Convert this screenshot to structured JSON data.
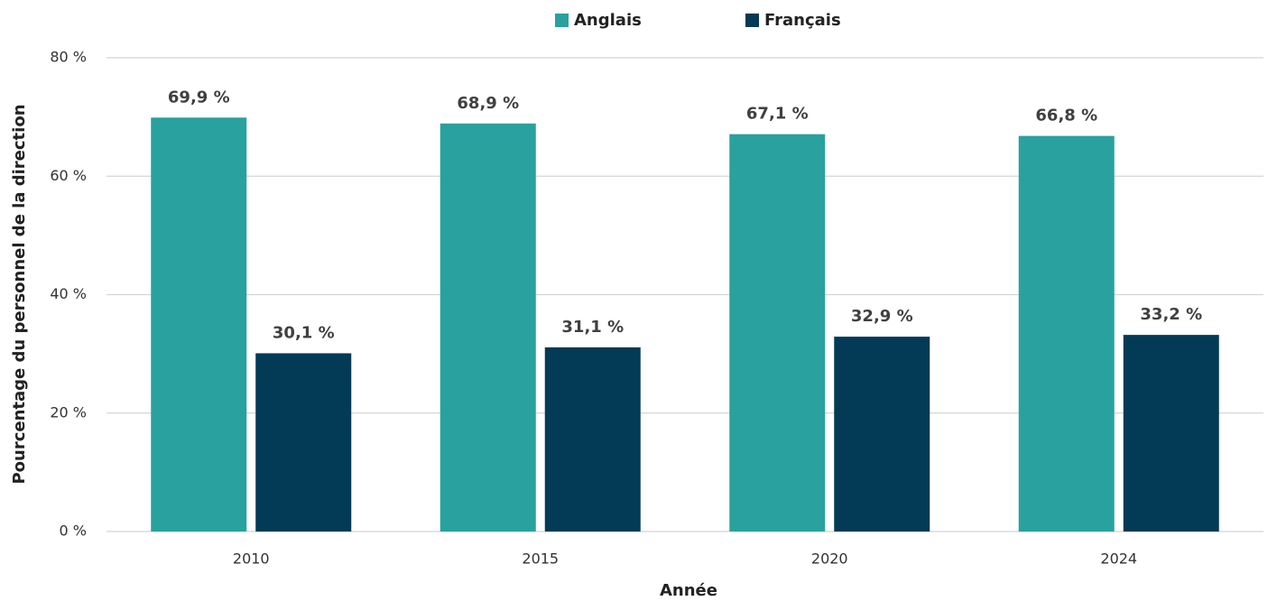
{
  "chart_data": {
    "type": "bar",
    "categories": [
      "2010",
      "2015",
      "2020",
      "2024"
    ],
    "series": [
      {
        "name": "Anglais",
        "color": "#29a19f",
        "values": [
          69.9,
          68.9,
          67.1,
          66.8
        ],
        "value_labels": [
          "69,9 %",
          "68,9 %",
          "67,1 %",
          "66,8 %"
        ]
      },
      {
        "name": "Français",
        "color": "#033a55",
        "values": [
          30.1,
          31.1,
          32.9,
          33.2
        ],
        "value_labels": [
          "30,1 %",
          "31,1 %",
          "32,9 %",
          "33,2 %"
        ]
      }
    ],
    "ylim": [
      0,
      80
    ],
    "yticks": [
      {
        "value": 0,
        "label": "0 %"
      },
      {
        "value": 20,
        "label": "20 %"
      },
      {
        "value": 40,
        "label": "40 %"
      },
      {
        "value": 60,
        "label": "60 %"
      },
      {
        "value": 80,
        "label": "80 %"
      }
    ],
    "ylabel": "Pourcentage du personnel de la direction",
    "xlabel": "Année",
    "grid": true,
    "legend": "top"
  }
}
